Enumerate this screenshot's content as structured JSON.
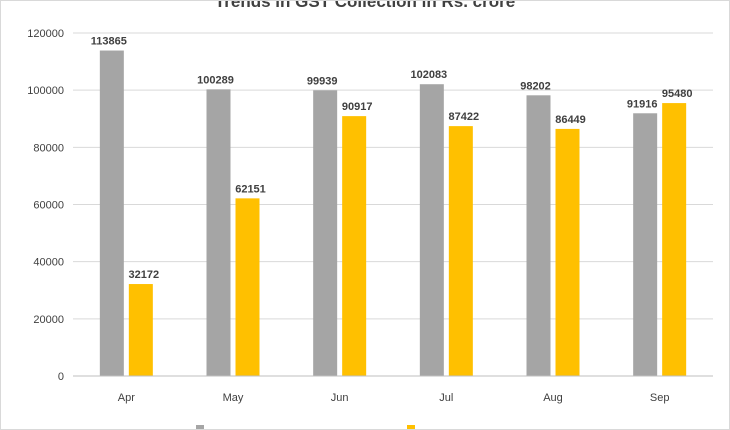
{
  "chart_data": {
    "type": "bar",
    "title": "Trends in GST Collection in Rs. crore",
    "categories": [
      "Apr",
      "May",
      "Jun",
      "Jul",
      "Aug",
      "Sep"
    ],
    "series": [
      {
        "values": [
          113865,
          100289,
          99939,
          102083,
          98202,
          91916
        ],
        "color": "#a5a5a5"
      },
      {
        "values": [
          32172,
          62151,
          90917,
          87422,
          86449,
          95480
        ],
        "color": "#ffc000"
      }
    ],
    "ylim": [
      0,
      120000
    ],
    "yticks": [
      0,
      20000,
      40000,
      60000,
      80000,
      100000,
      120000
    ],
    "xlabel": "",
    "ylabel": "",
    "grid": true,
    "legend": "bottom"
  }
}
